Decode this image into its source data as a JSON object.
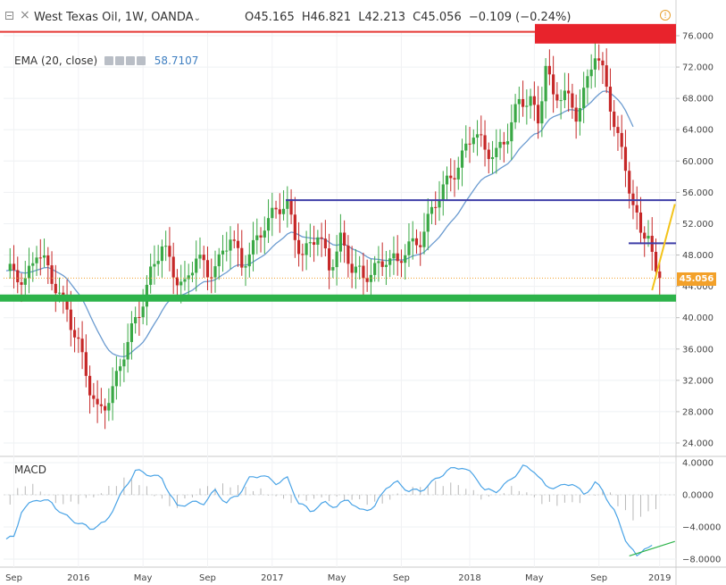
{
  "header": {
    "symbol": "West Texas Oil, 1W, OANDA",
    "open": "O45.165",
    "high": "H46.821",
    "low": "L42.213",
    "close": "C45.056",
    "change": "−0.109 (−0.24%)",
    "info_icon": "info-icon"
  },
  "indicator": {
    "name": "EMA (20, close)",
    "value": "58.7107",
    "icons": [
      "eye-icon",
      "gear-icon",
      "copy-icon",
      "close-icon"
    ]
  },
  "macd_label": "MACD",
  "last_price_tag": "45.056",
  "colors": {
    "up": "#3aa845",
    "down": "#c62828",
    "ema": "#6b9bd0",
    "macd": "#49a3e6",
    "support": "#2db34a",
    "resistance_zone": "#e8232c",
    "blue_line": "#3e3ea8",
    "trend": "#f3c31a",
    "price_tag": "#f3a12a"
  },
  "chart_data": [
    {
      "type": "candlestick",
      "title": "",
      "y_axis": {
        "min": 22,
        "max": 78,
        "ticks": [
          "76.000",
          "72.000",
          "68.000",
          "64.000",
          "60.000",
          "56.000",
          "52.000",
          "48.000",
          "44.000",
          "40.000",
          "36.000",
          "32.000",
          "28.000",
          "24.000"
        ]
      },
      "x_ticks": [
        "Sep",
        "2016",
        "May",
        "Sep",
        "2017",
        "May",
        "Sep",
        "2018",
        "May",
        "Sep",
        "2019"
      ],
      "x_tick_weeks": [
        2,
        19,
        36,
        53,
        70,
        87,
        104,
        122,
        139,
        156,
        172
      ],
      "last_price": 45.056,
      "anchors": [
        [
          0,
          45.5
        ],
        [
          5,
          45.0
        ],
        [
          8,
          48.8
        ],
        [
          12,
          44.5
        ],
        [
          16,
          41.5
        ],
        [
          19,
          36.5
        ],
        [
          22,
          30.5
        ],
        [
          24,
          28.0
        ],
        [
          28,
          31.0
        ],
        [
          32,
          36.5
        ],
        [
          35,
          41.0
        ],
        [
          38,
          46.0
        ],
        [
          41,
          49.0
        ],
        [
          44,
          45.5
        ],
        [
          47,
          44.5
        ],
        [
          50,
          48.0
        ],
        [
          53,
          45.0
        ],
        [
          56,
          47.5
        ],
        [
          59,
          51.0
        ],
        [
          62,
          46.0
        ],
        [
          65,
          49.0
        ],
        [
          68,
          52.5
        ],
        [
          71,
          53.5
        ],
        [
          74,
          54.0
        ],
        [
          76,
          50.5
        ],
        [
          78,
          48.5
        ],
        [
          82,
          50.5
        ],
        [
          85,
          46.0
        ],
        [
          88,
          50.5
        ],
        [
          91,
          46.5
        ],
        [
          94,
          44.5
        ],
        [
          97,
          46.5
        ],
        [
          100,
          48.0
        ],
        [
          103,
          46.5
        ],
        [
          106,
          49.0
        ],
        [
          109,
          50.5
        ],
        [
          112,
          53.5
        ],
        [
          116,
          57.0
        ],
        [
          120,
          61.0
        ],
        [
          123,
          63.5
        ],
        [
          126,
          61.0
        ],
        [
          129,
          61.5
        ],
        [
          132,
          63.5
        ],
        [
          135,
          67.0
        ],
        [
          138,
          68.0
        ],
        [
          140,
          65.5
        ],
        [
          142,
          72.5
        ],
        [
          144,
          67.5
        ],
        [
          147,
          68.5
        ],
        [
          150,
          66.5
        ],
        [
          153,
          70.0
        ],
        [
          155,
          73.5
        ],
        [
          157,
          71.0
        ],
        [
          159,
          67.5
        ],
        [
          161,
          63.5
        ],
        [
          163,
          59.0
        ],
        [
          165,
          54.0
        ],
        [
          167,
          50.0
        ],
        [
          169,
          51.5
        ],
        [
          171,
          45.5
        ],
        [
          172,
          45.1
        ]
      ],
      "annotations": {
        "resistance_zone": [
          75.0,
          77.5
        ],
        "red_line": 76.5,
        "blue_line_1": 55.0,
        "blue_line_2": 49.5,
        "support": 42.5,
        "trend_up": [
          [
            170,
            43.5
          ],
          [
            176,
            54.5
          ]
        ]
      }
    },
    {
      "type": "line",
      "title": "MACD",
      "y_axis": {
        "min": -8.5,
        "max": 4.8,
        "ticks": [
          "4.0000",
          "0.0000",
          "-4.0000",
          "-8.0000"
        ]
      },
      "lines": [
        {
          "name": "MACD",
          "anchors": [
            [
              0,
              -5.5
            ],
            [
              2,
              -5.3
            ],
            [
              4,
              -2.0
            ],
            [
              8,
              -0.5
            ],
            [
              12,
              -1.0
            ],
            [
              15,
              -2.5
            ],
            [
              19,
              -3.5
            ],
            [
              22,
              -4.2
            ],
            [
              26,
              -3.5
            ],
            [
              29,
              -1.0
            ],
            [
              32,
              1.5
            ],
            [
              34,
              3.0
            ],
            [
              38,
              2.5
            ],
            [
              41,
              2.0
            ],
            [
              45,
              -1.5
            ],
            [
              48,
              -1.0
            ],
            [
              52,
              -1.0
            ],
            [
              55,
              0.5
            ],
            [
              58,
              -1.0
            ],
            [
              61,
              0.0
            ],
            [
              64,
              2.0
            ],
            [
              67,
              2.5
            ],
            [
              71,
              1.5
            ],
            [
              74,
              2.0
            ],
            [
              77,
              -1.0
            ],
            [
              80,
              -2.0
            ],
            [
              84,
              -1.0
            ],
            [
              87,
              -1.5
            ],
            [
              90,
              -0.5
            ],
            [
              93,
              -2.0
            ],
            [
              97,
              -1.5
            ],
            [
              100,
              1.0
            ],
            [
              103,
              1.5
            ],
            [
              106,
              0.5
            ],
            [
              109,
              0.5
            ],
            [
              112,
              1.5
            ],
            [
              116,
              3.0
            ],
            [
              120,
              3.5
            ],
            [
              124,
              2.0
            ],
            [
              126,
              0.5
            ],
            [
              129,
              0.5
            ],
            [
              132,
              1.5
            ],
            [
              136,
              3.5
            ],
            [
              139,
              3.0
            ],
            [
              142,
              1.0
            ],
            [
              146,
              1.0
            ],
            [
              149,
              1.5
            ],
            [
              152,
              0.0
            ],
            [
              155,
              1.5
            ],
            [
              157,
              0.5
            ],
            [
              160,
              -2.0
            ],
            [
              163,
              -5.5
            ],
            [
              166,
              -7.8
            ],
            [
              168,
              -6.5
            ],
            [
              170,
              -6.5
            ]
          ]
        },
        {
          "name": "Trend",
          "anchors": [
            [
              164,
              -7.6
            ],
            [
              176,
              -5.8
            ]
          ]
        }
      ],
      "histogram": [
        [
          3,
          1.0
        ],
        [
          8,
          1.2
        ],
        [
          12,
          -0.8
        ],
        [
          16,
          -1.2
        ],
        [
          22,
          -0.5
        ],
        [
          32,
          2.2
        ],
        [
          38,
          0.5
        ],
        [
          44,
          -1.8
        ],
        [
          52,
          1.0
        ],
        [
          60,
          1.2
        ],
        [
          67,
          0.5
        ],
        [
          74,
          -0.8
        ],
        [
          80,
          -0.5
        ],
        [
          90,
          -0.5
        ],
        [
          98,
          -1.2
        ],
        [
          106,
          0.6
        ],
        [
          112,
          1.5
        ],
        [
          120,
          1.2
        ],
        [
          126,
          -0.6
        ],
        [
          134,
          1.0
        ],
        [
          142,
          -1.2
        ],
        [
          150,
          -1.0
        ],
        [
          158,
          0.8
        ],
        [
          162,
          -1.8
        ],
        [
          165,
          -3.0
        ],
        [
          168,
          -2.6
        ],
        [
          171,
          -1.5
        ]
      ]
    }
  ]
}
